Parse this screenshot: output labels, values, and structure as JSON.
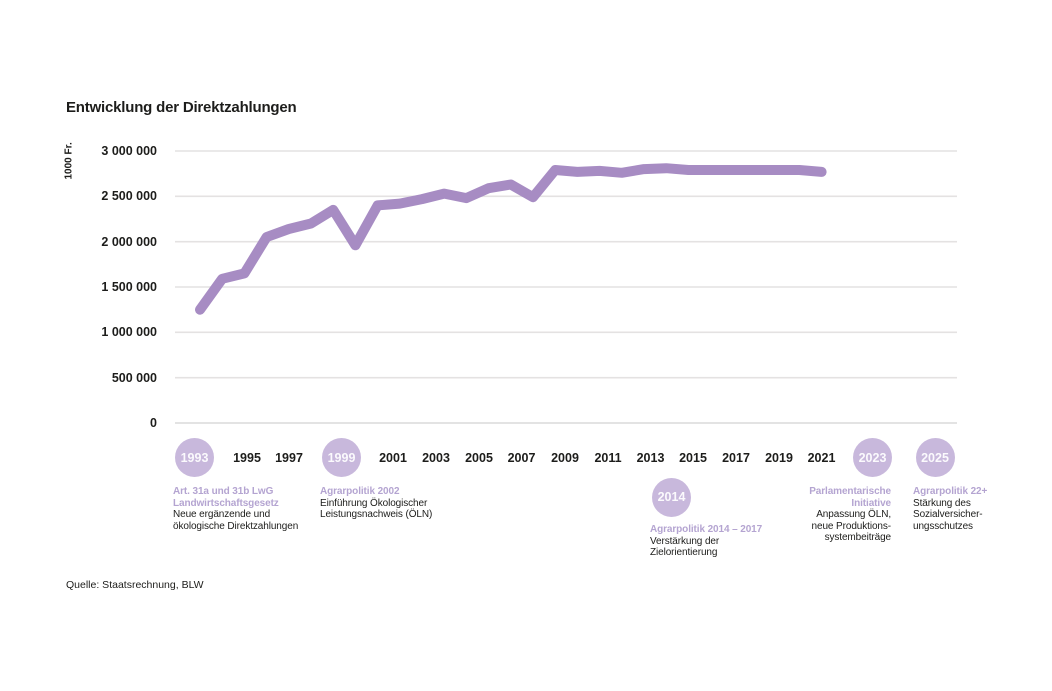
{
  "header": {
    "title": "Entwicklung der Direktzahlungen"
  },
  "source": {
    "label": "Quelle: Staatsrechnung, BLW"
  },
  "colors": {
    "line": "#a78cc3",
    "milestone_circle": "#c8b8dc",
    "heading_purple": "#b4a4d1",
    "text": "#1d1d1b",
    "gridline": "#e4e2e2",
    "zero_line": "#dadada"
  },
  "chart_data": {
    "type": "line",
    "title": "Entwicklung der Direktzahlungen",
    "unit_label": "1000 Fr.",
    "xlabel": "",
    "ylabel": "1000 Fr.",
    "ylim": [
      0,
      3000000
    ],
    "grid": "horizontal",
    "legend_position": "none",
    "x": [
      1993,
      1994,
      1995,
      1996,
      1997,
      1998,
      1999,
      2000,
      2001,
      2002,
      2003,
      2004,
      2005,
      2006,
      2007,
      2008,
      2009,
      2010,
      2011,
      2012,
      2013,
      2014,
      2015,
      2016,
      2017,
      2018,
      2019,
      2020,
      2021
    ],
    "series": [
      {
        "name": "Direktzahlungen",
        "values": [
          1250000,
          1590000,
          1650000,
          2050000,
          2140000,
          2200000,
          2350000,
          1960000,
          2400000,
          2420000,
          2470000,
          2530000,
          2480000,
          2590000,
          2630000,
          2490000,
          2790000,
          2770000,
          2780000,
          2760000,
          2800000,
          2810000,
          2790000,
          2790000,
          2790000,
          2790000,
          2790000,
          2790000,
          2770000
        ]
      }
    ],
    "y_ticks": [
      {
        "value": 3000000,
        "label": "3 000 000"
      },
      {
        "value": 2500000,
        "label": "2 500 000"
      },
      {
        "value": 2000000,
        "label": "2 000 000"
      },
      {
        "value": 1500000,
        "label": "1 500 000"
      },
      {
        "value": 1000000,
        "label": "1 000 000"
      },
      {
        "value": 500000,
        "label": "500 000"
      },
      {
        "value": 0,
        "label": "0"
      }
    ],
    "x_tick_labels": [
      "1995",
      "1997",
      "2001",
      "2003",
      "2005",
      "2007",
      "2009",
      "2011",
      "2013",
      "2015",
      "2017",
      "2019",
      "2021"
    ],
    "milestones": [
      {
        "year": "1993",
        "heading": [
          "Art. 31a und 31b LwG",
          "Landwirtschaftsgesetz"
        ],
        "body": [
          "Neue ergänzende und",
          "ökologische Direktzahlungen"
        ]
      },
      {
        "year": "1999",
        "heading": [
          "Agrarpolitik 2002"
        ],
        "body": [
          "Einführung Ökologischer",
          "Leistungsnachweis (ÖLN)"
        ]
      },
      {
        "year": "2014",
        "heading": [
          "Agrarpolitik 2014 – 2017"
        ],
        "body": [
          "Verstärkung der",
          "Zielorientierung"
        ]
      },
      {
        "year": "2023",
        "heading": [
          "Parlamentarische",
          "Initiative"
        ],
        "body": [
          "Anpassung ÖLN,",
          "neue Produktions-",
          "systembeiträge"
        ]
      },
      {
        "year": "2025",
        "heading": [
          "Agrarpolitik 22+"
        ],
        "body": [
          "Stärkung des",
          "Sozialversicher-",
          "ungsschutzes"
        ]
      }
    ]
  }
}
